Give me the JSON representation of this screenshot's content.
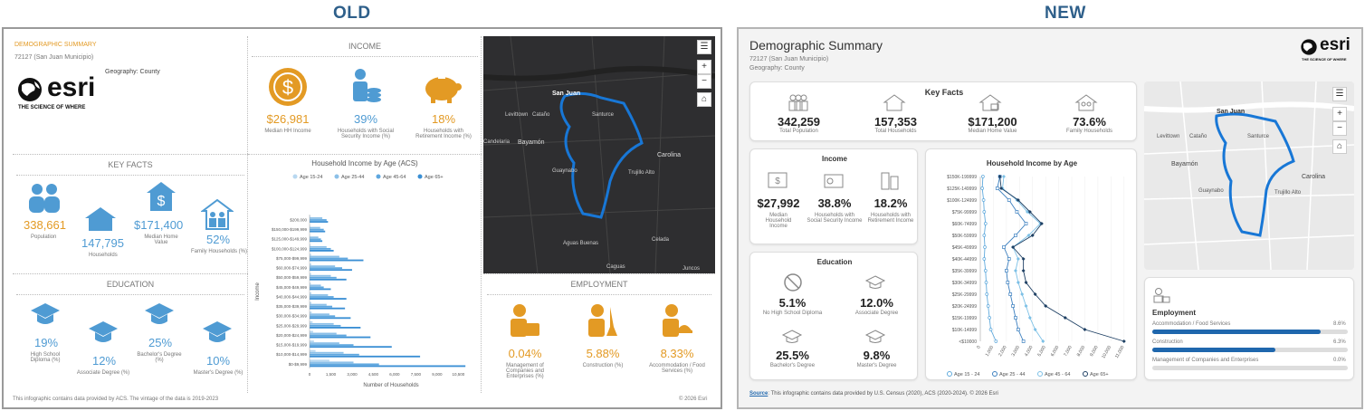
{
  "headers": {
    "old": "OLD",
    "new": "NEW"
  },
  "old": {
    "title": "DEMOGRAPHIC SUMMARY",
    "location": "72127 (San Juan Municipio)",
    "geography": "Geography: County",
    "logo_text": "esri",
    "logo_tagline": "THE SCIENCE OF WHERE",
    "income": {
      "heading": "INCOME",
      "items": [
        {
          "value": "$26,981",
          "label": "Median HH Income",
          "icon": "dollar-coin-icon"
        },
        {
          "value": "39%",
          "label": "Households with Social Security Income (%)",
          "icon": "person-coins-icon"
        },
        {
          "value": "18%",
          "label": "Households with Retirement Income (%)",
          "icon": "piggy-bank-icon"
        }
      ]
    },
    "key_facts": {
      "heading": "KEY FACTS",
      "population": "338,661",
      "population_label": "Population",
      "households": "147,795",
      "households_label": "Households",
      "home_value": "$171,400",
      "home_value_label": "Median Home Value",
      "family": "52%",
      "family_label": "Family Households (%)"
    },
    "education": {
      "heading": "EDUCATION",
      "items": [
        {
          "value": "19%",
          "label": "High School Diploma (%)"
        },
        {
          "value": "12%",
          "label": "Associate Degree (%)"
        },
        {
          "value": "25%",
          "label": "Bachelor's Degree (%)"
        },
        {
          "value": "10%",
          "label": "Master's Degree (%)"
        }
      ]
    },
    "employment": {
      "heading": "EMPLOYMENT",
      "items": [
        {
          "value": "0.04%",
          "label": "Management of Companies and Enterprises (%)"
        },
        {
          "value": "5.88%",
          "label": "Construction (%)"
        },
        {
          "value": "8.33%",
          "label": "Accommodation / Food Services (%)"
        }
      ]
    },
    "footer_left": "This infographic contains data provided by ACS. The vintage of the data is 2019-2023",
    "footer_right": "© 2026 Esri",
    "map_labels": [
      "San Juan",
      "Levittown",
      "Cataño",
      "Santurce",
      "Bayamón",
      "Carolina",
      "Guaynabo",
      "Trujillo Alto",
      "Aguas Buenas",
      "Caguas",
      "Celada",
      "Juncos",
      "Candelaria"
    ]
  },
  "old_chart": {
    "chart_data": {
      "type": "bar",
      "orientation": "horizontal",
      "title": "Household Income by Age (ACS)",
      "xlabel": "Number of Households",
      "ylabel": "Income",
      "xlim": [
        0,
        11500
      ],
      "xticks": [
        "0",
        "1,500",
        "3,000",
        "4,500",
        "6,000",
        "7,500",
        "9,000",
        "10,500"
      ],
      "xtick_values": [
        0,
        1500,
        3000,
        4500,
        6000,
        7500,
        9000,
        10500
      ],
      "categories": [
        "$200,000",
        "$150,000-$199,999",
        "$125,000-$149,999",
        "$100,000-$124,999",
        "$75,000-$99,999",
        "$60,000-$74,999",
        "$50,000-$59,999",
        "$45,000-$49,999",
        "$40,000-$44,999",
        "$35,000-$39,999",
        "$30,000-$34,999",
        "$25,000-$29,999",
        "$20,000-$24,999",
        "$15,000-$19,999",
        "$10,000-$14,999",
        "$0-$9,999"
      ],
      "series": [
        {
          "name": "Age 15-24",
          "color": "#b8d8f0",
          "values": [
            50,
            40,
            30,
            60,
            110,
            120,
            110,
            90,
            130,
            130,
            150,
            210,
            250,
            310,
            420,
            1400
          ]
        },
        {
          "name": "Age 25-44",
          "color": "#8cc0e8",
          "values": [
            900,
            750,
            620,
            1200,
            2100,
            1800,
            1500,
            800,
            1300,
            1200,
            1400,
            1700,
            1900,
            2100,
            2400,
            3100
          ]
        },
        {
          "name": "Age 45-64",
          "color": "#5ea7df",
          "values": [
            1200,
            1000,
            800,
            1500,
            2700,
            2300,
            1900,
            1000,
            1700,
            1600,
            1800,
            2200,
            2600,
            3100,
            3500,
            4900
          ]
        },
        {
          "name": "Age 65+",
          "color": "#3a8fd4",
          "values": [
            1300,
            1100,
            900,
            1700,
            3800,
            3000,
            2600,
            1500,
            2600,
            2500,
            2900,
            3600,
            4300,
            5800,
            7800,
            11000
          ]
        }
      ]
    }
  },
  "new": {
    "title": "Demographic Summary",
    "location": "72127 (San Juan Municipio)",
    "geography": "Geography: County",
    "logo_text": "esri",
    "logo_tagline": "THE SCIENCE OF WHERE",
    "key_facts": {
      "heading": "Key Facts",
      "items": [
        {
          "value": "342,259",
          "label": "Total Population"
        },
        {
          "value": "157,353",
          "label": "Total Households"
        },
        {
          "value": "$171,200",
          "label": "Median Home Value"
        },
        {
          "value": "73.6%",
          "label": "Family Households"
        }
      ]
    },
    "income": {
      "heading": "Income",
      "items": [
        {
          "value": "$27,992",
          "label": "Median Household Income"
        },
        {
          "value": "38.8%",
          "label": "Households with Social Security Income"
        },
        {
          "value": "18.2%",
          "label": "Households with Retirement Income"
        }
      ]
    },
    "education": {
      "heading": "Education",
      "items": [
        {
          "value": "5.1%",
          "label": "No High School Diploma"
        },
        {
          "value": "12.0%",
          "label": "Associate Degree"
        },
        {
          "value": "25.5%",
          "label": "Bachelor's Degree"
        },
        {
          "value": "9.8%",
          "label": "Master's Degree"
        }
      ]
    },
    "employment": {
      "heading": "Employment",
      "items": [
        {
          "label": "Accommodation / Food Services",
          "value": "8.6%",
          "fraction": 0.086
        },
        {
          "label": "Construction",
          "value": "6.3%",
          "fraction": 0.063
        },
        {
          "label": "Management of Companies and Enterprises",
          "value": "0.0%",
          "fraction": 0.0
        }
      ]
    },
    "footer_source_link": "Source",
    "footer_text": ": This infographic contains data provided by U.S. Census (2020), ACS (2020-2024). © 2026 Esri",
    "map_labels": [
      "San Juan",
      "Levittown",
      "Cataño",
      "Santurce",
      "Bayamón",
      "Carolina",
      "Guaynabo",
      "Trujillo Alto"
    ]
  },
  "new_chart": {
    "chart_data": {
      "type": "line",
      "title": "Household Income by Age",
      "xlabel": "",
      "ylabel": "",
      "xlim": [
        0,
        11500
      ],
      "xticks": [
        "0",
        "1,000",
        "2,000",
        "3,000",
        "4,000",
        "5,000",
        "6,000",
        "7,000",
        "8,000",
        "9,000",
        "10,000",
        "11,000"
      ],
      "xtick_values": [
        0,
        1000,
        2000,
        3000,
        4000,
        5000,
        6000,
        7000,
        8000,
        9000,
        10000,
        11000
      ],
      "categories": [
        "$150K-199999",
        "$125K-149999",
        "$100K-124999",
        "$75K-99999",
        "$60K-74999",
        "$50K-59999",
        "$45K-49999",
        "$40K-44999",
        "$35K-39999",
        "$30K-34999",
        "$25K-29999",
        "$20K-24999",
        "$15K-19999",
        "$10K-14999",
        "<$10000"
      ],
      "series": [
        {
          "name": "Age 15 - 24",
          "color": "#5fa9dc",
          "marker": "circle",
          "values": [
            200,
            150,
            250,
            300,
            400,
            300,
            350,
            300,
            400,
            450,
            500,
            600,
            700,
            800,
            1200
          ]
        },
        {
          "name": "Age 25 - 44",
          "color": "#3b7fbf",
          "marker": "square",
          "values": [
            1500,
            1300,
            2200,
            2800,
            3500,
            2700,
            1800,
            2200,
            2000,
            2100,
            2300,
            2500,
            2700,
            2900,
            3300
          ]
        },
        {
          "name": "Age 45 - 64",
          "color": "#7cc0e6",
          "marker": "diamond",
          "values": [
            1800,
            1700,
            2800,
            3600,
            4600,
            3700,
            2500,
            2900,
            2700,
            2900,
            3200,
            3500,
            3800,
            4200,
            4800
          ]
        },
        {
          "name": "Age 65+",
          "color": "#1d3f63",
          "marker": "diamond",
          "values": [
            1500,
            1600,
            2900,
            3800,
            4700,
            4000,
            2500,
            3300,
            3300,
            3500,
            4200,
            5000,
            6500,
            8000,
            11000
          ]
        }
      ]
    }
  }
}
